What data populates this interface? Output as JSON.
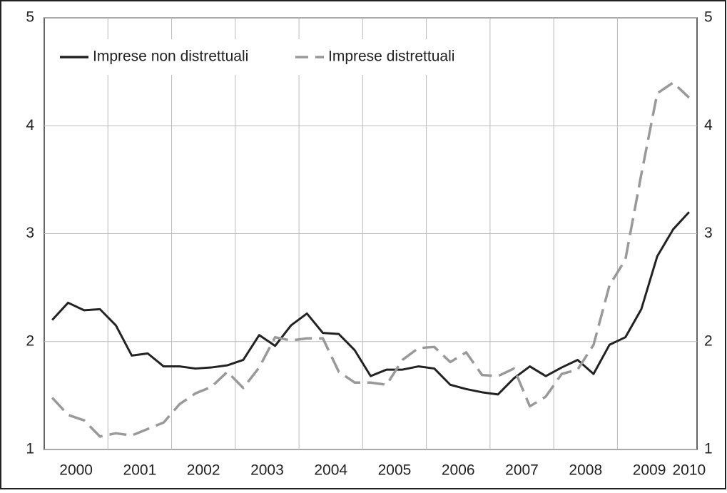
{
  "chart_data": {
    "type": "line",
    "x": [
      2000.125,
      2000.375,
      2000.625,
      2000.875,
      2001.125,
      2001.375,
      2001.625,
      2001.875,
      2002.125,
      2002.375,
      2002.625,
      2002.875,
      2003.125,
      2003.375,
      2003.625,
      2003.875,
      2004.125,
      2004.375,
      2004.625,
      2004.875,
      2005.125,
      2005.375,
      2005.625,
      2005.875,
      2006.125,
      2006.375,
      2006.625,
      2006.875,
      2007.125,
      2007.375,
      2007.625,
      2007.875,
      2008.125,
      2008.375,
      2008.625,
      2008.875,
      2009.125,
      2009.375,
      2009.625,
      2009.875,
      2010.125
    ],
    "series": [
      {
        "name": "Imprese non distrettuali",
        "color": "#222222",
        "dashed": false,
        "values": [
          2.2,
          2.36,
          2.29,
          2.3,
          2.15,
          1.87,
          1.89,
          1.77,
          1.77,
          1.75,
          1.76,
          1.78,
          1.83,
          2.06,
          1.96,
          2.15,
          2.26,
          2.08,
          2.07,
          1.92,
          1.68,
          1.74,
          1.74,
          1.77,
          1.75,
          1.6,
          1.56,
          1.53,
          1.51,
          1.66,
          1.77,
          1.68,
          1.76,
          1.83,
          1.7,
          1.97,
          2.04,
          2.3,
          2.79,
          3.04,
          3.2
        ]
      },
      {
        "name": "Imprese distrettuali",
        "color": "#999999",
        "dashed": true,
        "values": [
          1.48,
          1.32,
          1.27,
          1.12,
          1.15,
          1.13,
          1.19,
          1.25,
          1.42,
          1.52,
          1.58,
          1.72,
          1.57,
          1.76,
          2.04,
          2.01,
          2.03,
          2.03,
          1.72,
          1.62,
          1.62,
          1.6,
          1.83,
          1.94,
          1.95,
          1.81,
          1.9,
          1.69,
          1.68,
          1.75,
          1.4,
          1.49,
          1.7,
          1.74,
          1.97,
          2.52,
          2.76,
          3.55,
          4.3,
          4.4,
          4.26
        ]
      }
    ],
    "xlim": [
      2000,
      2010.25
    ],
    "xticks": [
      {
        "value": 2000.5,
        "label": "2000"
      },
      {
        "value": 2001.5,
        "label": "2001"
      },
      {
        "value": 2002.5,
        "label": "2002"
      },
      {
        "value": 2003.5,
        "label": "2003"
      },
      {
        "value": 2004.5,
        "label": "2004"
      },
      {
        "value": 2005.5,
        "label": "2005"
      },
      {
        "value": 2006.5,
        "label": "2006"
      },
      {
        "value": 2007.5,
        "label": "2007"
      },
      {
        "value": 2008.5,
        "label": "2008"
      },
      {
        "value": 2009.5,
        "label": "2009"
      },
      {
        "value": 2010.125,
        "label": "2010"
      }
    ],
    "xgrid": [
      2001,
      2002,
      2003,
      2004,
      2005,
      2006,
      2007,
      2008,
      2009
    ],
    "ylim": [
      1,
      5
    ],
    "yticks": [
      1,
      2,
      3,
      4,
      5
    ],
    "y2ticks": [
      1,
      2,
      3,
      4,
      5
    ],
    "grid": true,
    "legend": "upper left"
  }
}
